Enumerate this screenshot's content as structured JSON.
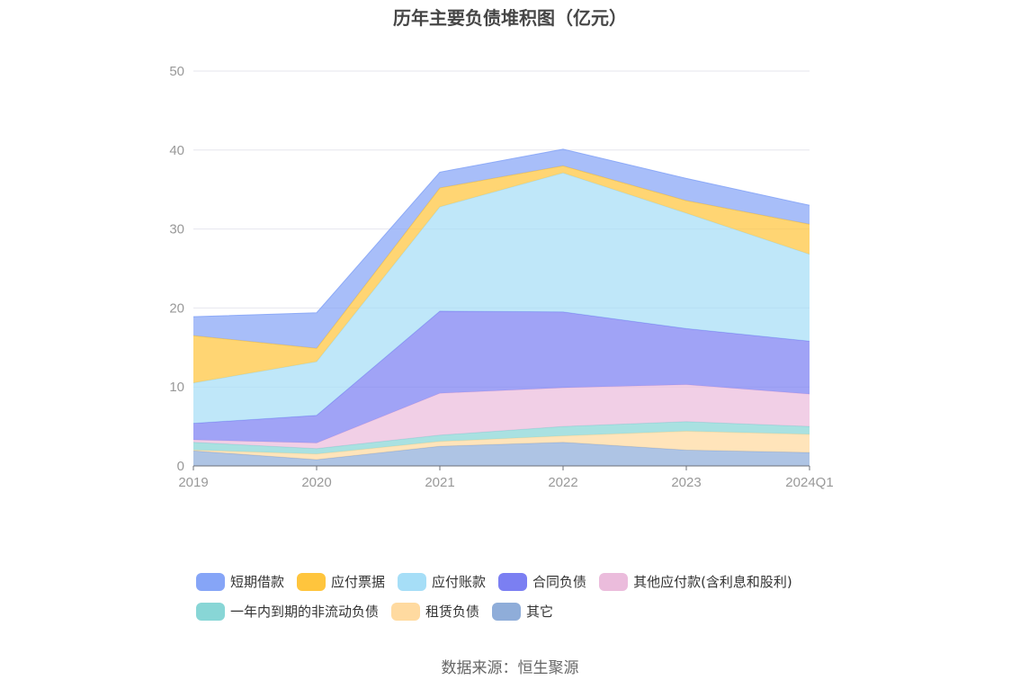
{
  "chart_data": {
    "type": "area",
    "stacked": true,
    "title": "历年主要负债堆积图（亿元）",
    "x": [
      "2019",
      "2020",
      "2021",
      "2022",
      "2023",
      "2024Q1"
    ],
    "ylim": [
      0,
      50
    ],
    "yticks": [
      0,
      10,
      20,
      30,
      40,
      50
    ],
    "grid": true,
    "legend_position": "bottom",
    "series": [
      {
        "name": "其它",
        "color": "#8fadd9",
        "values": [
          1.9,
          0.8,
          2.5,
          3.0,
          2.0,
          1.7
        ]
      },
      {
        "name": "租赁负债",
        "color": "#ffdaa0",
        "values": [
          0.1,
          0.7,
          0.6,
          0.8,
          2.4,
          2.3
        ]
      },
      {
        "name": "一年内到期的非流动负债",
        "color": "#88d6d6",
        "values": [
          1.0,
          0.7,
          0.8,
          1.2,
          1.2,
          1.0
        ]
      },
      {
        "name": "其他应付款(含利息和股利)",
        "color": "#ebbcdc",
        "values": [
          0.3,
          0.7,
          5.3,
          4.9,
          4.7,
          4.1
        ]
      },
      {
        "name": "合同负债",
        "color": "#7b7ff2",
        "values": [
          2.1,
          3.5,
          10.4,
          9.6,
          7.1,
          6.7
        ]
      },
      {
        "name": "应付账款",
        "color": "#a6def7",
        "values": [
          5.1,
          6.8,
          13.2,
          17.6,
          14.6,
          11.0
        ]
      },
      {
        "name": "应付票据",
        "color": "#ffc53d",
        "values": [
          6.0,
          1.7,
          2.4,
          0.9,
          1.6,
          3.8
        ]
      },
      {
        "name": "短期借款",
        "color": "#86a5f7",
        "values": [
          2.4,
          4.5,
          2.0,
          2.1,
          2.8,
          2.4
        ]
      }
    ],
    "legend_order": [
      "短期借款",
      "应付票据",
      "应付账款",
      "合同负债",
      "其他应付款(含利息和股利)",
      "一年内到期的非流动负债",
      "租赁负债",
      "其它"
    ]
  },
  "source": "数据来源：恒生聚源"
}
